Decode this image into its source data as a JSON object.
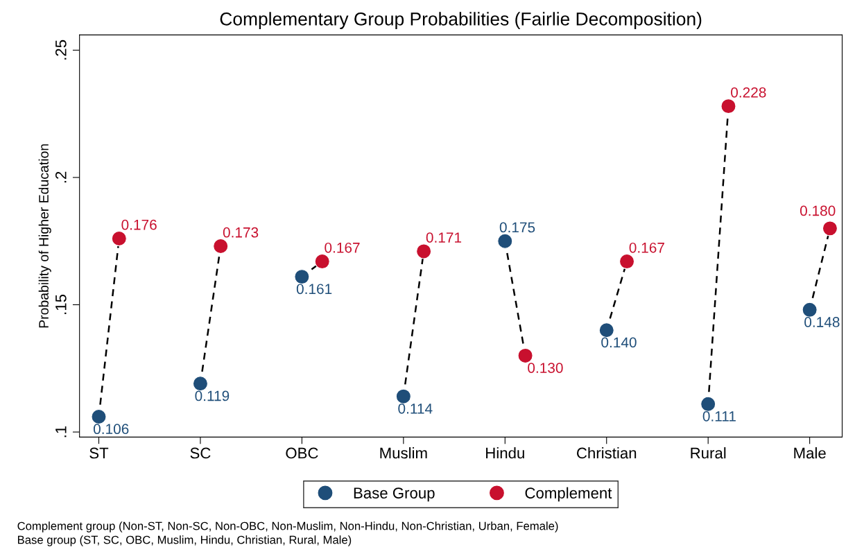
{
  "chart_data": {
    "type": "scatter",
    "title": "Complementary Group Probabilities (Fairlie Decomposition)",
    "ylabel": "Probability of Higher Education",
    "categories": [
      "ST",
      "SC",
      "OBC",
      "Muslim",
      "Hindu",
      "Christian",
      "Rural",
      "Male"
    ],
    "series": [
      {
        "name": "Base Group",
        "color": "#1f4e79",
        "values": [
          0.106,
          0.119,
          0.161,
          0.114,
          0.175,
          0.14,
          0.111,
          0.148
        ],
        "value_labels": [
          "0.106",
          "0.119",
          "0.161",
          "0.114",
          "0.175",
          "0.140",
          "0.111",
          "0.148"
        ]
      },
      {
        "name": "Complement",
        "color": "#c8102e",
        "values": [
          0.176,
          0.173,
          0.167,
          0.171,
          0.13,
          0.167,
          0.228,
          0.18
        ],
        "value_labels": [
          "0.176",
          "0.173",
          "0.167",
          "0.171",
          "0.130",
          "0.167",
          "0.228",
          "0.180"
        ]
      }
    ],
    "ylim": [
      0.098,
      0.256
    ],
    "yticks": [
      {
        "value": 0.1,
        "label": ".1"
      },
      {
        "value": 0.15,
        "label": ".15"
      },
      {
        "value": 0.2,
        "label": ".2"
      },
      {
        "value": 0.25,
        "label": ".25"
      }
    ],
    "grid": false,
    "legend": "bottom",
    "marker": "circle",
    "line_style": "dashed",
    "annotations": [
      "Complement group (Non-ST, Non-SC, Non-OBC, Non-Muslim, Non-Hindu, Non-Christian, Urban, Female)",
      "Base group (ST, SC, OBC, Muslim, Hindu, Christian, Rural, Male)"
    ]
  }
}
